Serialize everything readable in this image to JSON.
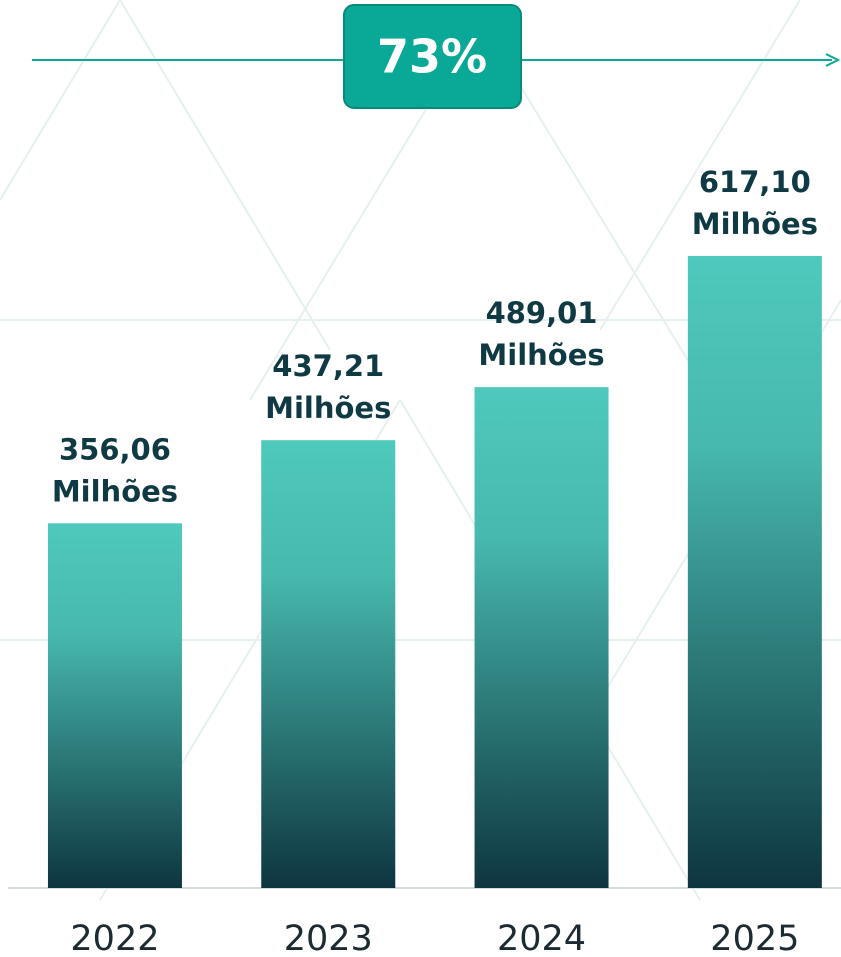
{
  "chart_data": {
    "type": "bar",
    "annotation": "73%",
    "categories": [
      "2022",
      "2023",
      "2024",
      "2025"
    ],
    "values": [
      356.06,
      437.21,
      489.01,
      617.1
    ],
    "value_labels": [
      "356,06",
      "437,21",
      "489,01",
      "617,10"
    ],
    "value_unit": "Milhões",
    "color": "#4ec9bc",
    "ylim": [
      0,
      867
    ]
  }
}
